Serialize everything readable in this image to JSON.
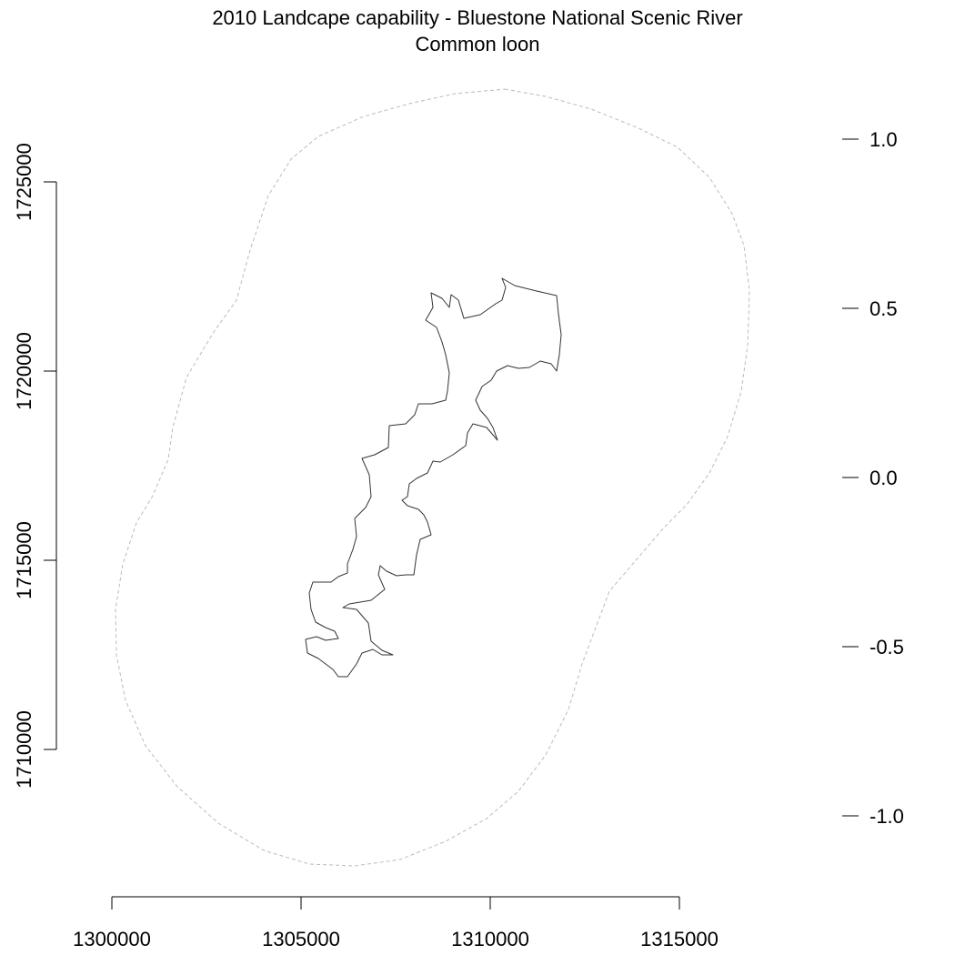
{
  "title": "2010 Landcape capability - Bluestone National Scenic River",
  "subtitle": "Common loon",
  "chart_data": {
    "type": "map",
    "x_axis": {
      "ticks": [
        1300000,
        1305000,
        1310000,
        1315000
      ],
      "range": [
        1300000,
        1315000
      ]
    },
    "y_axis": {
      "ticks": [
        1710000,
        1715000,
        1720000,
        1725000
      ],
      "range": [
        1710000,
        1725000
      ]
    },
    "legend_scale": {
      "ticks": [
        "1.0",
        "0.5",
        "0.0",
        "-0.5",
        "-1.0"
      ],
      "range": [
        -1.0,
        1.0
      ]
    },
    "layers": [
      {
        "name": "buffer",
        "style": "dashed",
        "color": "#bbbbbb"
      },
      {
        "name": "river-boundary",
        "style": "solid",
        "color": "#333333"
      }
    ]
  },
  "colors": {
    "buffer_line": "#bbbbbb",
    "boundary_line": "#333333",
    "axis": "#000000"
  }
}
